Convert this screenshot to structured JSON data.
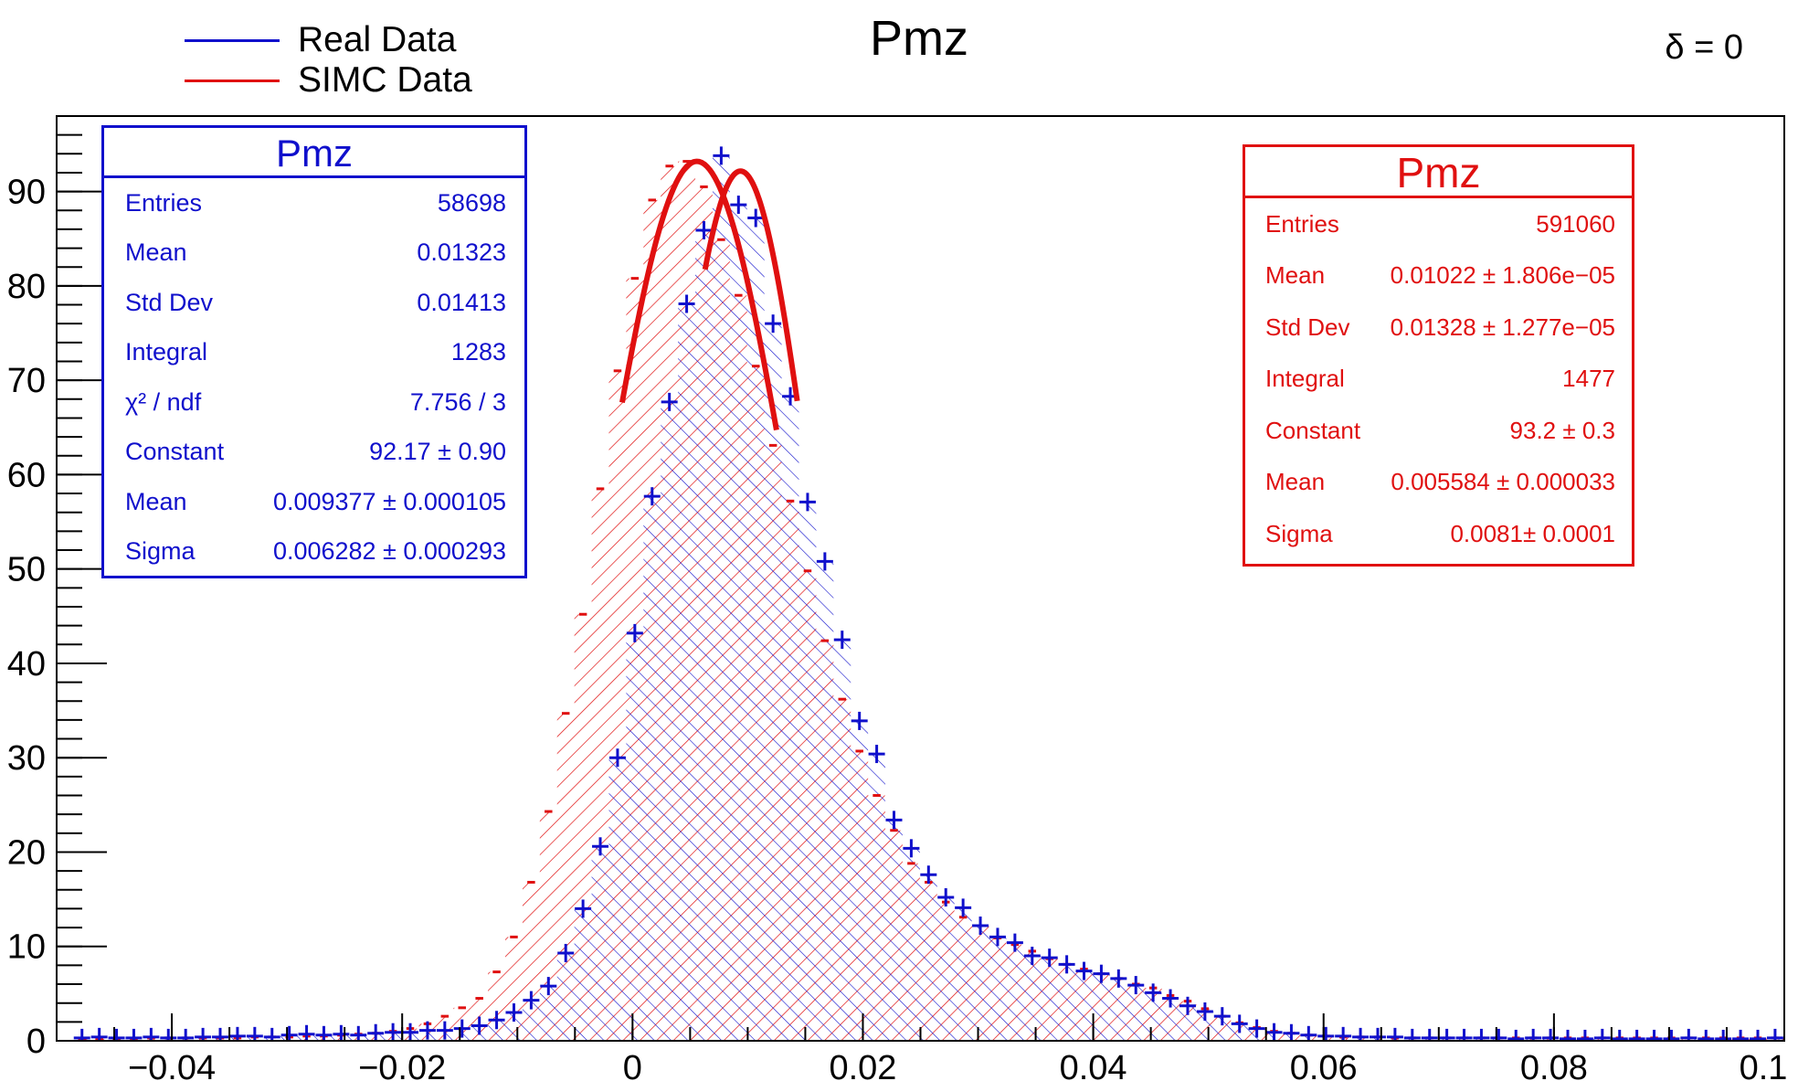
{
  "title": "Pmz",
  "delta_label": "δ = 0",
  "legend": [
    {
      "label": "Real Data",
      "color": "#1010cc"
    },
    {
      "label": "SIMC Data",
      "color": "#e01010"
    }
  ],
  "stats_real": {
    "title": "Pmz",
    "color": "#1010cc",
    "rows": [
      {
        "label": "Entries",
        "value": "58698"
      },
      {
        "label": "Mean",
        "value": "0.01323"
      },
      {
        "label": "Std Dev",
        "value": "0.01413"
      },
      {
        "label": "Integral",
        "value": "1283"
      },
      {
        "label": "χ² / ndf",
        "value": "7.756 / 3"
      },
      {
        "label": "Constant",
        "value": "92.17 ± 0.90"
      },
      {
        "label": "Mean",
        "value": "0.009377 ± 0.000105"
      },
      {
        "label": "Sigma",
        "value": "0.006282 ± 0.000293"
      }
    ]
  },
  "stats_simc": {
    "title": "Pmz",
    "color": "#e01010",
    "rows": [
      {
        "label": "Entries",
        "value": "591060"
      },
      {
        "label": "Mean",
        "value": "0.01022 ± 1.806e−05"
      },
      {
        "label": "Std Dev",
        "value": "0.01328 ± 1.277e−05"
      },
      {
        "label": "Integral",
        "value": "1477"
      },
      {
        "label": "Constant",
        "value": "93.2 ± 0.3"
      },
      {
        "label": "Mean",
        "value": "0.005584 ± 0.000033"
      },
      {
        "label": "Sigma",
        "value": "0.0081± 0.0001"
      }
    ]
  },
  "chart_data": {
    "type": "histogram",
    "title": "Pmz",
    "xlim": [
      -0.05,
      0.1
    ],
    "ylim": [
      0,
      98
    ],
    "bin_width": 0.0015,
    "x_ticks": [
      -0.04,
      -0.02,
      0,
      0.02,
      0.04,
      0.06,
      0.08,
      0.1
    ],
    "x_tick_labels": [
      "−0.04",
      "−0.02",
      "0",
      "0.02",
      "0.04",
      "0.06",
      "0.08",
      "0.1"
    ],
    "y_ticks": [
      0,
      10,
      20,
      30,
      40,
      50,
      60,
      70,
      80,
      90
    ],
    "y_tick_labels": [
      "0",
      "10",
      "20",
      "30",
      "40",
      "50",
      "60",
      "70",
      "80",
      "90"
    ],
    "series": [
      {
        "name": "Real Data",
        "color": "#1010cc",
        "x": [
          -0.0478,
          -0.0463,
          -0.0448,
          -0.0433,
          -0.0418,
          -0.0403,
          -0.0388,
          -0.0373,
          -0.0358,
          -0.0343,
          -0.0328,
          -0.0313,
          -0.0298,
          -0.0283,
          -0.0268,
          -0.0253,
          -0.0238,
          -0.0223,
          -0.0208,
          -0.0193,
          -0.0178,
          -0.0163,
          -0.0148,
          -0.0133,
          -0.0118,
          -0.0103,
          -0.0088,
          -0.0073,
          -0.0058,
          -0.0043,
          -0.0028,
          -0.0013,
          0.0002,
          0.0017,
          0.0032,
          0.0047,
          0.0062,
          0.0077,
          0.0092,
          0.0107,
          0.0122,
          0.0137,
          0.0152,
          0.0167,
          0.0182,
          0.0197,
          0.0212,
          0.0227,
          0.0242,
          0.0257,
          0.0272,
          0.0287,
          0.0302,
          0.0317,
          0.0332,
          0.0347,
          0.0362,
          0.0377,
          0.0392,
          0.0407,
          0.0422,
          0.0437,
          0.0452,
          0.0467,
          0.0482,
          0.0497,
          0.0512,
          0.0527,
          0.0542,
          0.0557,
          0.0572,
          0.0587,
          0.0602,
          0.0617,
          0.0632,
          0.0647,
          0.0662,
          0.0677,
          0.0692,
          0.0707,
          0.0722,
          0.0737,
          0.0752,
          0.0767,
          0.0782,
          0.0797,
          0.0812,
          0.0827,
          0.0842,
          0.0857,
          0.0872,
          0.0887,
          0.0902,
          0.0917,
          0.0932,
          0.0947,
          0.0962,
          0.0977,
          0.0992
        ],
        "values": [
          0.3,
          0.4,
          0.3,
          0.3,
          0.4,
          0.3,
          0.3,
          0.4,
          0.4,
          0.5,
          0.5,
          0.4,
          0.6,
          0.7,
          0.6,
          0.7,
          0.6,
          0.8,
          0.9,
          0.9,
          1.1,
          1.1,
          1.3,
          1.6,
          2.2,
          3.0,
          4.3,
          5.8,
          9.3,
          14.0,
          20.6,
          30.0,
          43.2,
          57.7,
          67.7,
          78.1,
          85.9,
          93.8,
          88.6,
          87.2,
          76.0,
          68.3,
          57.1,
          50.8,
          42.5,
          33.9,
          30.4,
          23.4,
          20.4,
          17.6,
          15.2,
          14.1,
          12.2,
          11.0,
          10.4,
          9.0,
          8.8,
          8.1,
          7.4,
          7.1,
          6.6,
          5.9,
          5.1,
          4.5,
          3.7,
          3.1,
          2.6,
          1.8,
          1.3,
          0.9,
          0.8,
          0.6,
          0.5,
          0.5,
          0.4,
          0.4,
          0.4,
          0.3,
          0.3,
          0.3,
          0.3,
          0.3,
          0.3,
          0.2,
          0.3,
          0.3,
          0.2,
          0.2,
          0.3,
          0.2,
          0.2,
          0.2,
          0.2,
          0.3,
          0.2,
          0.2,
          0.2,
          0.2,
          0.3
        ]
      },
      {
        "name": "SIMC Data",
        "color": "#e01010",
        "x": [
          -0.0478,
          -0.0463,
          -0.0448,
          -0.0433,
          -0.0418,
          -0.0403,
          -0.0388,
          -0.0373,
          -0.0358,
          -0.0343,
          -0.0328,
          -0.0313,
          -0.0298,
          -0.0283,
          -0.0268,
          -0.0253,
          -0.0238,
          -0.0223,
          -0.0208,
          -0.0193,
          -0.0178,
          -0.0163,
          -0.0148,
          -0.0133,
          -0.0118,
          -0.0103,
          -0.0088,
          -0.0073,
          -0.0058,
          -0.0043,
          -0.0028,
          -0.0013,
          0.0002,
          0.0017,
          0.0032,
          0.0047,
          0.0062,
          0.0077,
          0.0092,
          0.0107,
          0.0122,
          0.0137,
          0.0152,
          0.0167,
          0.0182,
          0.0197,
          0.0212,
          0.0227,
          0.0242,
          0.0257,
          0.0272,
          0.0287,
          0.0302,
          0.0317,
          0.0332,
          0.0347,
          0.0362,
          0.0377,
          0.0392,
          0.0407,
          0.0422,
          0.0437,
          0.0452,
          0.0467,
          0.0482,
          0.0497,
          0.0512,
          0.0527,
          0.0542,
          0.0557,
          0.0572,
          0.0587,
          0.0602,
          0.0617,
          0.0632,
          0.0647,
          0.0662,
          0.0677,
          0.0692,
          0.0707,
          0.0722,
          0.0737,
          0.0752,
          0.0767,
          0.0782,
          0.0797,
          0.0812,
          0.0827,
          0.0842,
          0.0857,
          0.0872,
          0.0887,
          0.0902,
          0.0917,
          0.0932,
          0.0947,
          0.0962,
          0.0977,
          0.0992
        ],
        "values": [
          0.2,
          0.2,
          0.2,
          0.2,
          0.3,
          0.3,
          0.3,
          0.3,
          0.3,
          0.3,
          0.4,
          0.4,
          0.4,
          0.5,
          0.5,
          0.6,
          0.7,
          0.8,
          1.0,
          1.3,
          1.8,
          2.6,
          3.5,
          4.5,
          7.3,
          11.0,
          16.8,
          24.3,
          34.7,
          45.2,
          58.5,
          71.0,
          80.8,
          89.1,
          92.7,
          93.2,
          90.5,
          84.9,
          79.0,
          71.5,
          63.1,
          57.2,
          49.8,
          42.4,
          36.2,
          30.7,
          26.0,
          22.3,
          18.8,
          16.8,
          14.7,
          13.1,
          12.2,
          10.9,
          10.2,
          9.5,
          8.7,
          8.1,
          7.6,
          7.1,
          6.6,
          6.0,
          5.6,
          4.8,
          4.2,
          3.4,
          2.6,
          1.9,
          1.4,
          1.0,
          0.8,
          0.6,
          0.5,
          0.4,
          0.4,
          0.4,
          0.3,
          0.3,
          0.3,
          0.3,
          0.3,
          0.3,
          0.3,
          0.3,
          0.3,
          0.3,
          0.3,
          0.3,
          0.3,
          0.3,
          0.3,
          0.3,
          0.3,
          0.3,
          0.3,
          0.3,
          0.3,
          0.3,
          0.3
        ]
      }
    ],
    "fits": [
      {
        "name": "Real Data fit",
        "color": "#e01010",
        "constant": 92.17,
        "mean": 0.009377,
        "sigma": 0.006282,
        "xrange": [
          0.0063,
          0.0143
        ]
      },
      {
        "name": "SIMC Data fit",
        "color": "#e01010",
        "constant": 93.2,
        "mean": 0.005584,
        "sigma": 0.0081,
        "xrange": [
          -0.0009,
          0.0125
        ]
      }
    ]
  }
}
